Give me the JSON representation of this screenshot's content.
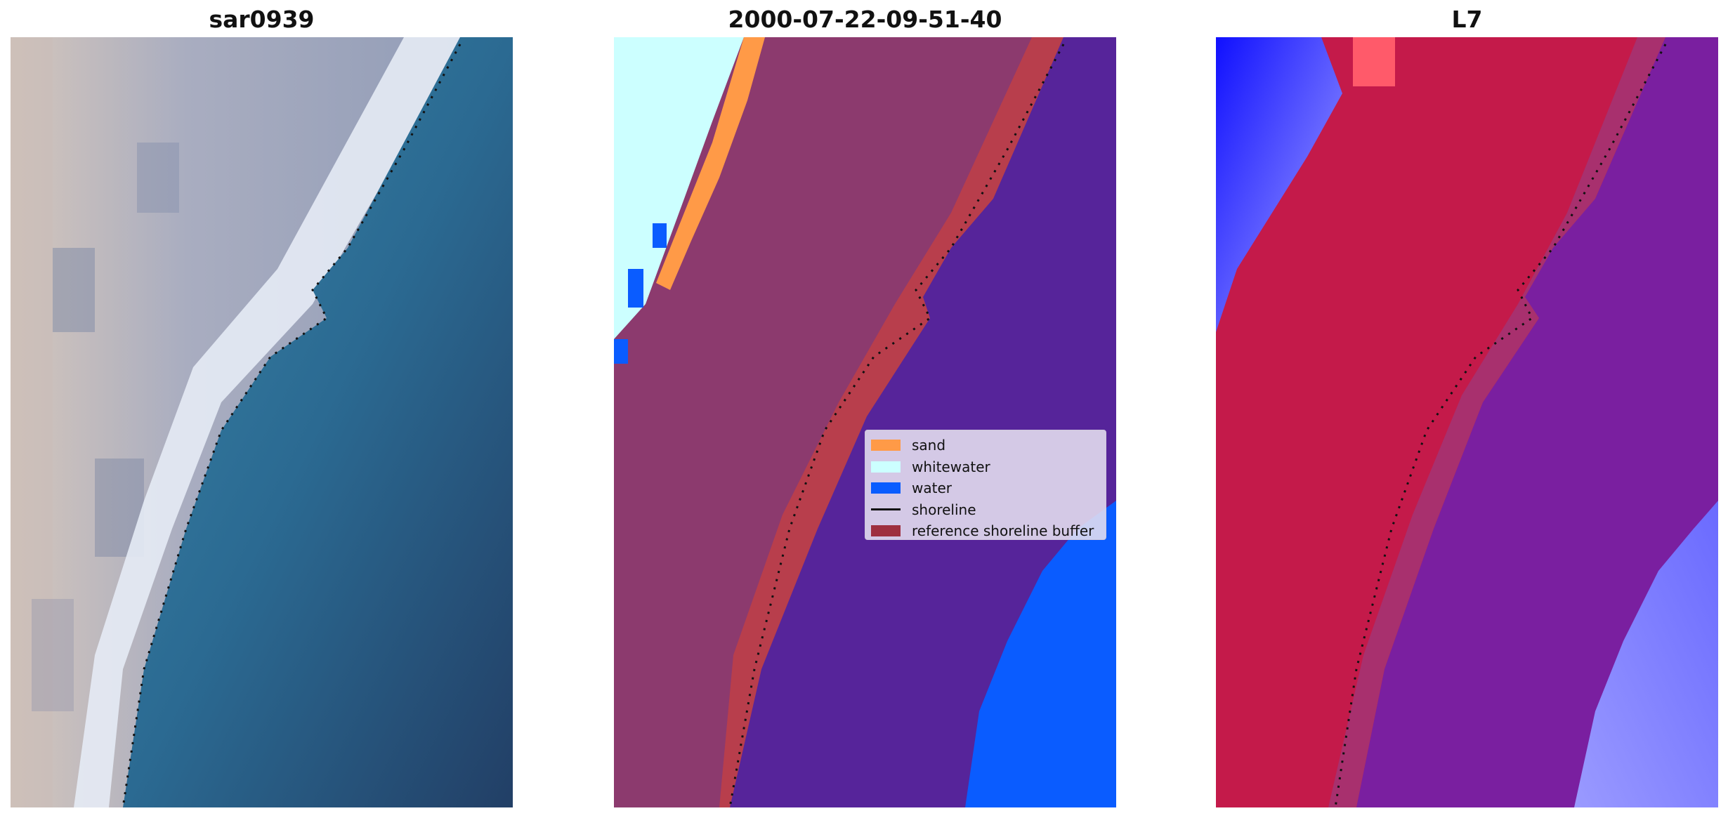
{
  "figure": {
    "titles": {
      "left": "sar0939",
      "middle": "2000-07-22-09-51-40",
      "right": "L7"
    }
  },
  "legend": {
    "items": [
      {
        "label": "sand",
        "color": "#ff9a47",
        "kind": "patch"
      },
      {
        "label": "whitewater",
        "color": "#ccffff",
        "kind": "patch"
      },
      {
        "label": "water",
        "color": "#0a5cff",
        "kind": "patch"
      },
      {
        "label": "shoreline",
        "color": "#111111",
        "kind": "line"
      },
      {
        "label": "reference shoreline buffer",
        "color": "#9e2f3f",
        "kind": "patch"
      }
    ]
  },
  "colors": {
    "rgb_land": "#b8bdcc",
    "rgb_beach": "#e8ecf4",
    "rgb_sea": "#2a6a92",
    "class_land": "#8c3a6e",
    "class_buffer": "#b83e4c",
    "class_sea": "#56249a",
    "class_water": "#0a5cff",
    "class_whitewater": "#ccffff",
    "class_sand": "#ff9a47",
    "index_land": "#c41a4a",
    "index_sea": "#7a1fa0",
    "index_water": "#6a6aff",
    "index_whitewater": "#f4f0f8"
  }
}
